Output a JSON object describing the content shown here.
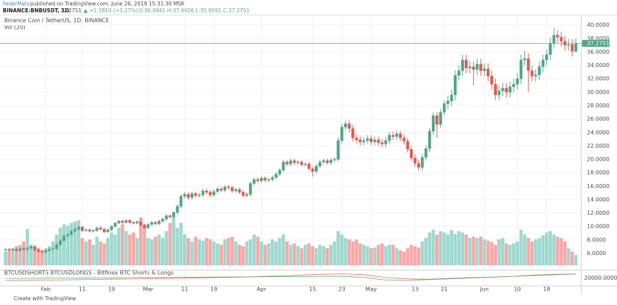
{
  "header": {
    "author": "FederMatv",
    "published": "published on TradingView.com, June 26, 2019 15:31:30 MSK",
    "symbol": "BINANCE:BNBUSDT, 1D",
    "last": "37.2751",
    "change": "▲ +1.1810 (+3.27%)",
    "ohlc": "O:36.0941 H:37.9926 L:35.9591 C:37.2751"
  },
  "footer": "Create with TradingView",
  "chart_data": {
    "type": "candlestick",
    "title": "Binance Coin / TetherUS, 1D, BINANCE",
    "volume_label": "Vol (20)",
    "up_color": "#53a585",
    "down_color": "#dd5c54",
    "volume_up_color": "#9fd8cf",
    "volume_down_color": "#f6a9a7",
    "last_line_color": "#53a585",
    "grid": true,
    "ylim": [
      3.8,
      41.5
    ],
    "yticks": [
      {
        "value": 6,
        "label": "6.0000"
      },
      {
        "value": 8,
        "label": "8.0000"
      },
      {
        "value": 10,
        "label": "10.0000"
      },
      {
        "value": 12,
        "label": "12.0000"
      },
      {
        "value": 14,
        "label": "14.0000"
      },
      {
        "value": 16,
        "label": "16.0000"
      },
      {
        "value": 18,
        "label": "18.0000"
      },
      {
        "value": 20,
        "label": "20.0000"
      },
      {
        "value": 22,
        "label": "22.0000"
      },
      {
        "value": 24,
        "label": "24.0000"
      },
      {
        "value": 26,
        "label": "26.0000"
      },
      {
        "value": 28,
        "label": "28.0000"
      },
      {
        "value": 30,
        "label": "30.0000"
      },
      {
        "value": 32,
        "label": "32.0000"
      },
      {
        "value": 34,
        "label": "34.0000"
      },
      {
        "value": 36,
        "label": "36.0000"
      },
      {
        "value": 38,
        "label": "38.0000"
      },
      {
        "value": 40,
        "label": "40.0000"
      }
    ],
    "volume_lim": [
      0,
      100
    ],
    "categories": [
      null,
      null,
      null,
      null,
      null,
      null,
      null,
      null,
      null,
      null,
      null,
      "Feb",
      null,
      null,
      null,
      null,
      null,
      null,
      null,
      null,
      null,
      "11",
      null,
      null,
      null,
      null,
      null,
      null,
      null,
      "19",
      null,
      null,
      null,
      null,
      null,
      null,
      null,
      null,
      null,
      "Mar",
      null,
      null,
      null,
      null,
      null,
      null,
      null,
      null,
      null,
      "11",
      null,
      null,
      null,
      null,
      null,
      null,
      null,
      "19",
      null,
      null,
      null,
      null,
      null,
      null,
      null,
      null,
      null,
      null,
      null,
      null,
      "Apr",
      null,
      null,
      null,
      null,
      null,
      null,
      null,
      null,
      null,
      null,
      null,
      null,
      null,
      "15",
      null,
      null,
      null,
      null,
      null,
      null,
      null,
      "23",
      null,
      null,
      null,
      null,
      null,
      null,
      null,
      "May",
      null,
      null,
      null,
      null,
      null,
      null,
      null,
      null,
      null,
      null,
      null,
      "13",
      null,
      null,
      null,
      null,
      null,
      null,
      null,
      "21",
      null,
      null,
      null,
      null,
      null,
      null,
      null,
      null,
      null,
      null,
      "Jun",
      null,
      null,
      null,
      null,
      null,
      null,
      null,
      null,
      "10",
      null,
      null,
      null,
      null,
      null,
      null,
      null,
      "18",
      null,
      null,
      null,
      null,
      null,
      null,
      null,
      null
    ],
    "open": [
      6.5,
      6.6,
      6.5,
      6.6,
      6.4,
      6.7,
      6.6,
      6.8,
      7.0,
      6.5,
      6.3,
      6.2,
      6.4,
      6.6,
      6.7,
      7.3,
      7.9,
      8.6,
      8.8,
      9.3,
      9.6,
      9.9,
      9.4,
      9.5,
      9.3,
      9.4,
      9.8,
      9.6,
      9.2,
      9.5,
      10.0,
      10.5,
      10.8,
      10.6,
      10.9,
      10.6,
      10.5,
      10.7,
      10.2,
      9.8,
      10.3,
      10.6,
      10.4,
      10.8,
      11.1,
      11.6,
      11.4,
      12.1,
      13.0,
      14.5,
      14.8,
      14.3,
      14.9,
      14.6,
      14.7,
      15.3,
      15.1,
      14.7,
      15.2,
      15.6,
      15.4,
      15.9,
      15.8,
      15.3,
      15.5,
      15.1,
      14.6,
      14.8,
      16.4,
      17.0,
      16.8,
      17.2,
      16.9,
      17.0,
      17.3,
      17.8,
      18.4,
      19.6,
      19.3,
      19.8,
      19.5,
      19.6,
      19.2,
      19.3,
      18.6,
      18.2,
      19.0,
      19.6,
      19.8,
      19.5,
      19.9,
      20.0,
      22.8,
      24.8,
      25.3,
      24.6,
      23.2,
      22.9,
      22.6,
      22.8,
      23.1,
      22.6,
      22.9,
      22.5,
      22.3,
      22.8,
      23.6,
      23.4,
      23.8,
      23.2,
      22.7,
      21.5,
      20.2,
      19.4,
      18.8,
      20.3,
      21.6,
      24.2,
      26.5,
      25.2,
      27.0,
      28.3,
      28.7,
      29.6,
      32.5,
      33.2,
      34.8,
      33.6,
      33.8,
      33.4,
      34.2,
      33.2,
      33.5,
      32.4,
      31.2,
      29.6,
      30.2,
      30.6,
      30.0,
      30.8,
      31.2,
      32.0,
      34.8,
      35.0,
      33.2,
      32.4,
      32.6,
      33.8,
      34.8,
      35.6,
      37.3,
      38.5,
      38.2,
      37.6,
      37.0,
      37.1,
      36.0941
    ],
    "high": [
      6.8,
      6.8,
      6.8,
      6.8,
      6.9,
      6.9,
      7.0,
      7.2,
      7.2,
      6.7,
      6.5,
      6.6,
      6.8,
      6.9,
      7.5,
      8.1,
      8.8,
      9.0,
      9.5,
      9.8,
      10.1,
      10.1,
      9.7,
      9.7,
      9.6,
      10.0,
      10.0,
      9.8,
      9.7,
      10.2,
      10.7,
      11.0,
      11.0,
      11.1,
      11.1,
      10.8,
      10.9,
      10.9,
      10.4,
      10.5,
      10.8,
      10.8,
      11.0,
      11.3,
      11.8,
      11.8,
      12.3,
      13.3,
      14.8,
      15.1,
      15.1,
      15.2,
      15.2,
      15.0,
      15.6,
      15.6,
      15.4,
      15.5,
      15.9,
      15.9,
      16.2,
      16.2,
      16.1,
      15.8,
      15.8,
      15.4,
      15.1,
      16.7,
      17.3,
      17.3,
      17.5,
      17.5,
      17.3,
      17.6,
      18.1,
      18.7,
      19.9,
      19.9,
      20.1,
      20.1,
      19.9,
      19.9,
      19.6,
      19.6,
      18.9,
      19.3,
      19.9,
      20.1,
      20.1,
      20.2,
      20.3,
      23.3,
      25.3,
      25.8,
      25.8,
      25.1,
      23.7,
      23.4,
      23.3,
      23.6,
      23.6,
      23.4,
      23.4,
      23.0,
      23.3,
      24.1,
      24.1,
      24.3,
      24.3,
      23.7,
      23.2,
      22.0,
      20.7,
      19.9,
      20.8,
      22.1,
      24.7,
      27.0,
      27.0,
      27.5,
      28.8,
      29.5,
      30.4,
      33.3,
      34.0,
      35.6,
      35.6,
      34.6,
      34.6,
      35.0,
      35.0,
      34.3,
      34.3,
      33.2,
      32.0,
      31.0,
      31.4,
      31.4,
      31.6,
      32.0,
      32.8,
      35.6,
      36.2,
      35.8,
      34.0,
      33.4,
      34.6,
      35.6,
      36.4,
      38.1,
      39.6,
      39.3,
      39.0,
      38.4,
      37.9,
      37.9,
      37.9926
    ],
    "low": [
      6.3,
      6.3,
      6.3,
      6.2,
      6.2,
      6.4,
      6.4,
      6.6,
      6.3,
      6.1,
      6.0,
      6.0,
      6.2,
      6.4,
      6.5,
      7.1,
      7.7,
      8.4,
      8.6,
      9.1,
      9.4,
      9.2,
      9.2,
      9.1,
      9.1,
      9.2,
      9.4,
      9.0,
      9.0,
      9.3,
      9.8,
      10.3,
      10.4,
      10.4,
      10.4,
      10.3,
      10.3,
      10.0,
      9.6,
      9.6,
      10.1,
      10.2,
      10.2,
      10.6,
      10.9,
      11.2,
      11.2,
      11.8,
      12.7,
      14.2,
      14.0,
      14.0,
      14.3,
      14.3,
      14.4,
      14.8,
      14.4,
      14.4,
      14.9,
      15.1,
      15.1,
      15.5,
      15.0,
      15.0,
      14.8,
      14.3,
      14.3,
      14.5,
      16.1,
      16.5,
      16.5,
      16.6,
      16.6,
      16.7,
      17.0,
      17.5,
      18.1,
      19.0,
      19.0,
      19.2,
      19.2,
      18.9,
      18.9,
      18.3,
      17.4,
      17.9,
      18.7,
      19.3,
      19.2,
      19.2,
      19.6,
      19.7,
      22.3,
      24.3,
      24.1,
      22.7,
      22.4,
      22.1,
      22.1,
      22.3,
      22.1,
      22.1,
      22.0,
      21.8,
      21.8,
      22.3,
      22.9,
      22.9,
      22.7,
      22.2,
      21.0,
      19.7,
      18.9,
      18.3,
      18.3,
      19.8,
      21.1,
      23.7,
      23.2,
      24.7,
      26.5,
      27.5,
      27.9,
      28.8,
      31.7,
      32.4,
      32.8,
      32.8,
      31.0,
      32.6,
      32.4,
      32.4,
      31.6,
      30.4,
      28.8,
      28.8,
      29.4,
      29.2,
      29.2,
      30.0,
      30.4,
      31.2,
      34.0,
      30.0,
      31.6,
      31.6,
      31.8,
      33.0,
      34.0,
      34.8,
      36.5,
      37.4,
      36.8,
      36.2,
      36.2,
      35.3,
      35.9591
    ],
    "close": [
      6.6,
      6.5,
      6.6,
      6.4,
      6.7,
      6.6,
      6.8,
      7.0,
      6.5,
      6.3,
      6.2,
      6.4,
      6.6,
      6.7,
      7.3,
      7.9,
      8.6,
      8.8,
      9.3,
      9.6,
      9.9,
      9.4,
      9.5,
      9.3,
      9.4,
      9.8,
      9.6,
      9.2,
      9.5,
      10.0,
      10.5,
      10.8,
      10.6,
      10.9,
      10.6,
      10.5,
      10.7,
      10.2,
      9.8,
      10.3,
      10.6,
      10.4,
      10.8,
      11.1,
      11.6,
      11.4,
      12.1,
      13.0,
      14.5,
      14.8,
      14.3,
      14.9,
      14.6,
      14.7,
      15.3,
      15.1,
      14.7,
      15.2,
      15.6,
      15.4,
      15.9,
      15.8,
      15.3,
      15.5,
      15.1,
      14.6,
      14.8,
      16.4,
      17.0,
      16.8,
      17.2,
      16.9,
      17.0,
      17.3,
      17.8,
      18.4,
      19.6,
      19.3,
      19.8,
      19.5,
      19.6,
      19.2,
      19.3,
      18.6,
      18.2,
      19.0,
      19.6,
      19.8,
      19.5,
      19.9,
      20.0,
      22.8,
      24.8,
      25.3,
      24.6,
      23.2,
      22.9,
      22.6,
      22.8,
      23.1,
      22.6,
      22.9,
      22.5,
      22.3,
      22.8,
      23.6,
      23.4,
      23.8,
      23.2,
      22.7,
      21.5,
      20.2,
      19.4,
      18.8,
      20.3,
      21.6,
      24.2,
      26.5,
      25.2,
      27.0,
      28.3,
      28.7,
      29.6,
      32.5,
      33.2,
      34.8,
      33.6,
      33.8,
      33.4,
      34.2,
      33.2,
      33.5,
      32.4,
      31.2,
      29.6,
      30.2,
      30.6,
      30.0,
      30.8,
      31.2,
      32.0,
      34.8,
      35.0,
      33.2,
      32.4,
      32.6,
      33.8,
      34.8,
      35.6,
      37.3,
      38.5,
      38.2,
      37.6,
      37.0,
      37.1,
      36.1,
      37.2751
    ],
    "volume": [
      20,
      22,
      25,
      28,
      30,
      35,
      53,
      30,
      25,
      25,
      22,
      25,
      28,
      35,
      45,
      55,
      60,
      58,
      62,
      64,
      66,
      40,
      35,
      38,
      30,
      42,
      35,
      32,
      40,
      48,
      45,
      55,
      60,
      50,
      45,
      48,
      40,
      70,
      60,
      40,
      38,
      42,
      45,
      40,
      50,
      62,
      70,
      55,
      62,
      45,
      40,
      35,
      42,
      38,
      36,
      40,
      38,
      35,
      32,
      30,
      38,
      40,
      42,
      35,
      30,
      28,
      35,
      38,
      45,
      42,
      35,
      30,
      32,
      38,
      35,
      40,
      45,
      35,
      30,
      32,
      28,
      25,
      30,
      32,
      28,
      25,
      30,
      28,
      25,
      30,
      35,
      50,
      45,
      40,
      38,
      35,
      38,
      32,
      30,
      28,
      25,
      26,
      30,
      32,
      28,
      30,
      30,
      25,
      22,
      20,
      25,
      30,
      28,
      26,
      35,
      40,
      48,
      52,
      45,
      50,
      48,
      45,
      52,
      46,
      50,
      48,
      45,
      40,
      42,
      40,
      42,
      38,
      36,
      34,
      30,
      38,
      40,
      32,
      30,
      32,
      35,
      52,
      45,
      40,
      35,
      38,
      40,
      44,
      48,
      50,
      45,
      42,
      40,
      35,
      25,
      20,
      15
    ],
    "indicator": {
      "title": "BTCUSDSHORTS BTCUSDLONGS - Bitfinex BTC Shorts & Longs",
      "ylim": [
        12000,
        28000
      ],
      "yticks": [
        {
          "value": 20000,
          "label": "20000.0000"
        }
      ],
      "series": [
        {
          "color": "#e06666",
          "values": [
            17000,
            17200,
            17500,
            17800,
            18200,
            18600,
            18800,
            19200,
            19600,
            20000,
            20500,
            21000,
            21800,
            22500,
            23500,
            24500,
            25000,
            24000,
            20500,
            19000,
            18500,
            19500,
            20500,
            21000,
            22000,
            23500,
            24500,
            25000
          ]
        },
        {
          "color": "#4caf50",
          "values": [
            19500,
            19600,
            19800,
            20000,
            20200,
            20300,
            20500,
            20600,
            20800,
            21000,
            21200,
            21300,
            21500,
            21600,
            21800,
            22000,
            22100,
            20500,
            17500,
            17000,
            18000,
            19000,
            20000,
            21000,
            22000,
            23000,
            24000,
            25000
          ]
        }
      ]
    }
  }
}
